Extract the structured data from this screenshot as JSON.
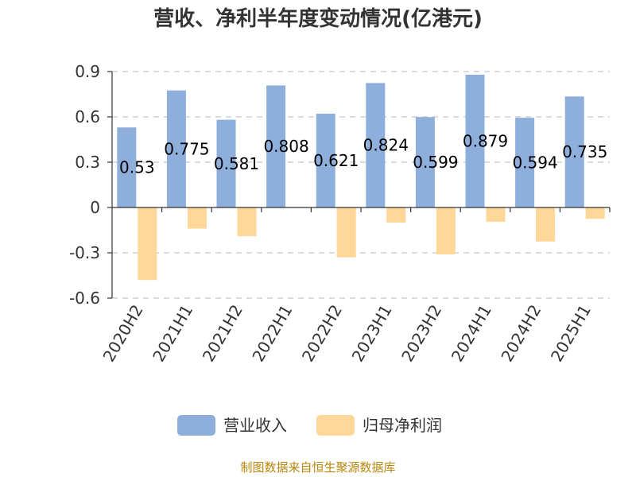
{
  "title": "营收、净利半年度变动情况(亿港元)",
  "source": "制图数据来自恒生聚源数据库",
  "colors": {
    "revenue": "#8eaedc",
    "net_profit": "#ffd799",
    "grid": "#c8c8c8",
    "axis": "#333333"
  },
  "chart_data": {
    "type": "bar",
    "categories": [
      "2020H2",
      "2021H1",
      "2021H2",
      "2022H1",
      "2022H2",
      "2023H1",
      "2023H2",
      "2024H1",
      "2024H2",
      "2025H1"
    ],
    "series": [
      {
        "name": "营业收入",
        "values": [
          0.53,
          0.775,
          0.581,
          0.808,
          0.621,
          0.824,
          0.599,
          0.879,
          0.594,
          0.735
        ],
        "labels": [
          "0.53",
          "0.775",
          "0.581",
          "0.808",
          "0.621",
          "0.824",
          "0.599",
          "0.879",
          "0.594",
          "0.735"
        ]
      },
      {
        "name": "归母净利润",
        "values": [
          -0.48,
          -0.14,
          -0.19,
          0,
          -0.33,
          -0.1,
          -0.31,
          -0.095,
          -0.225,
          -0.075
        ]
      }
    ],
    "ylim": [
      -0.6,
      0.9
    ],
    "yticks": [
      0.9,
      0.6,
      0.3,
      0,
      -0.3,
      -0.6
    ],
    "ytick_labels": [
      "0.9",
      "0.6",
      "0.3",
      "0",
      "-0.3",
      "-0.6"
    ],
    "grid": true,
    "legend_position": "bottom-center"
  }
}
